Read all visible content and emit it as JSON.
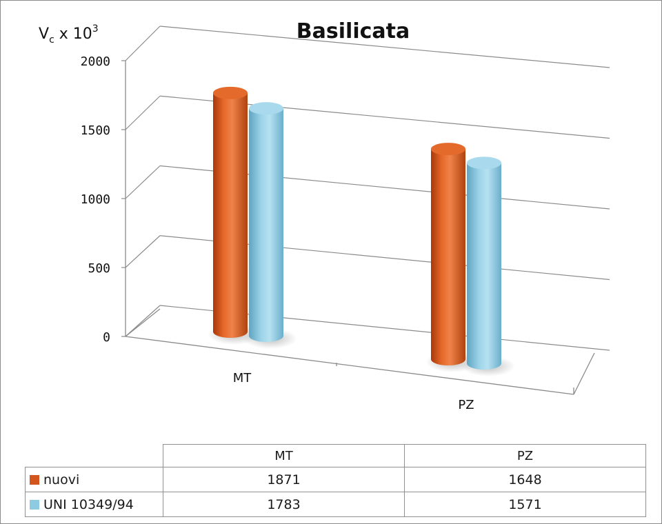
{
  "chart_data": {
    "type": "bar",
    "title": "Basilicata",
    "ylabel": "Vc x 10^3",
    "ylabel_parts": {
      "base": "V",
      "subscript": "c",
      "middle": " x 10",
      "superscript": "3"
    },
    "categories": [
      "MT",
      "PZ"
    ],
    "yticks": [
      "0",
      "500",
      "1000",
      "1500",
      "2000"
    ],
    "ylim": [
      0,
      2000
    ],
    "grid": true,
    "style": "3D cylinder",
    "legend_placement": "data table below chart",
    "series": [
      {
        "name": "nuovi",
        "color": "#d2561d",
        "values": [
          1871,
          1648
        ]
      },
      {
        "name": "UNI 10349/94",
        "color": "#8ecae0",
        "values": [
          1783,
          1571
        ]
      }
    ]
  },
  "table": {
    "headers": [
      "MT",
      "PZ"
    ],
    "rows": [
      {
        "label": "nuovi",
        "values": [
          "1871",
          "1648"
        ]
      },
      {
        "label": "UNI 10349/94",
        "values": [
          "1783",
          "1571"
        ]
      }
    ]
  }
}
